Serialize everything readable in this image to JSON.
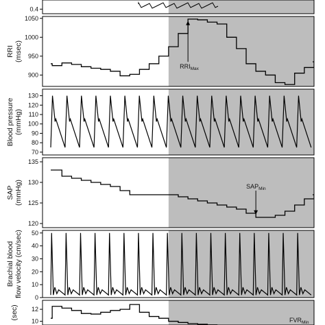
{
  "chart_data": [
    {
      "id": "top",
      "type": "line",
      "ylabel": "",
      "yticks": [
        0.4
      ],
      "ylim": [
        0.3,
        0.75
      ],
      "shaded_range": [
        13,
        28
      ]
    },
    {
      "id": "rri",
      "type": "line",
      "ylabel_lines": [
        "RRI",
        "(msec)"
      ],
      "yticks": [
        900,
        950,
        1000,
        1050
      ],
      "ylim": [
        870,
        1055
      ],
      "x": [
        0,
        1,
        2,
        3,
        4,
        5,
        6,
        7,
        8,
        9,
        10,
        11,
        12,
        13,
        14,
        15,
        16,
        17,
        18,
        19,
        20,
        21,
        22,
        23,
        24,
        25,
        26,
        27,
        28
      ],
      "values": [
        930,
        925,
        932,
        928,
        922,
        918,
        915,
        910,
        898,
        902,
        915,
        930,
        950,
        975,
        1010,
        1048,
        1046,
        1040,
        1035,
        1000,
        970,
        930,
        910,
        900,
        880,
        875,
        905,
        920,
        935
      ],
      "shaded_range": [
        13,
        28
      ],
      "annotation": {
        "text": "RRI",
        "sub": "Max",
        "x": 15,
        "y": 1048
      }
    },
    {
      "id": "bp",
      "type": "line",
      "ylabel_lines": [
        "Blood pressure",
        "(mmHg)"
      ],
      "yticks": [
        70,
        80,
        90,
        100,
        110,
        120,
        130
      ],
      "ylim": [
        67,
        137
      ],
      "beat_count": 18,
      "beat_max": 130,
      "beat_min": 75,
      "shaded_range": [
        13,
        28
      ]
    },
    {
      "id": "sap",
      "type": "line",
      "ylabel_lines": [
        "SAP",
        "(mmHg)"
      ],
      "yticks": [
        120,
        125,
        130,
        135
      ],
      "ylim": [
        119,
        136
      ],
      "x": [
        0,
        1,
        2,
        3,
        4,
        5,
        6,
        7,
        8,
        9,
        10,
        11,
        12,
        13,
        14,
        15,
        16,
        17,
        18,
        19,
        20,
        21,
        22,
        23,
        24,
        25,
        26,
        27,
        28
      ],
      "values": [
        133,
        133,
        131.5,
        131,
        130.5,
        130,
        129.5,
        129,
        128,
        127,
        127,
        127,
        127,
        127,
        126.5,
        126,
        125.5,
        125,
        124.5,
        124,
        123.5,
        122.5,
        121.5,
        121.5,
        122,
        123,
        124.5,
        126,
        127
      ],
      "shaded_range": [
        13,
        28
      ],
      "annotation": {
        "text": "SAP",
        "sub": "Min",
        "x": 22,
        "y": 121.5
      }
    },
    {
      "id": "bbfv",
      "type": "line",
      "ylabel_lines": [
        "Brachial blood",
        "flow velocity (cm/sec)"
      ],
      "yticks": [
        0,
        10,
        20,
        30,
        40,
        50
      ],
      "ylim": [
        0,
        52
      ],
      "beat_count": 18,
      "beat_max": 50,
      "beat_min": 2,
      "shaded_range": [
        13,
        28
      ]
    },
    {
      "id": "fvr",
      "type": "line",
      "ylabel_lines": [
        "(sec)"
      ],
      "yticks": [
        10,
        12
      ],
      "ylim": [
        8,
        13.5
      ],
      "x": [
        0,
        1,
        2,
        3,
        4,
        5,
        6,
        7,
        8,
        9,
        10,
        11,
        12,
        13,
        14,
        15,
        16,
        17,
        18,
        19,
        20,
        21,
        22,
        23,
        24,
        25,
        26,
        27,
        28
      ],
      "values": [
        10.5,
        12.5,
        12.2,
        11.8,
        11.3,
        11.2,
        11.5,
        11.8,
        12,
        12.8,
        11.5,
        10.8,
        10.5,
        10,
        9.8,
        9.6,
        9.5,
        9.4,
        9.3,
        9.2,
        9.1,
        9,
        9,
        9,
        9,
        9,
        9,
        9,
        9
      ],
      "shaded_range": [
        13,
        28
      ],
      "annotation": {
        "text": "FVR",
        "sub": "Min"
      }
    }
  ]
}
